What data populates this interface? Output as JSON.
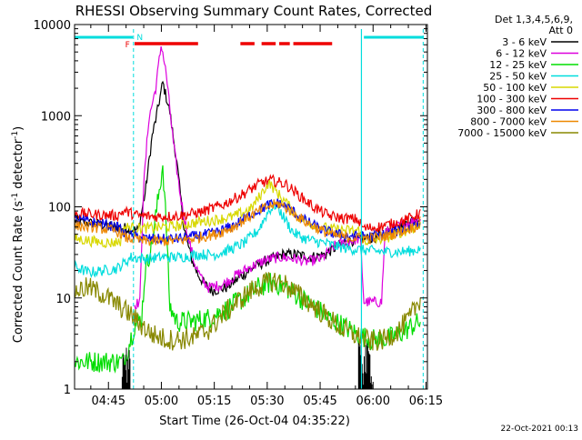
{
  "chart_data": {
    "type": "line",
    "title": "RHESSI Observing Summary Count Rates, Corrected",
    "xlabel": "Start Time (26-Oct-04 04:35:22)",
    "ylabel_main": "Corrected Count Rate (s",
    "ylabel_sup": "-1",
    "ylabel_end": " detector",
    "ylabel_sup2": "-1",
    "ylabel_close": ")",
    "yscale": "log",
    "ylim": [
      1,
      10000
    ],
    "y_ticks": [
      {
        "value": 1,
        "label": "1"
      },
      {
        "value": 10,
        "label": "10"
      },
      {
        "value": 100,
        "label": "100"
      },
      {
        "value": 1000,
        "label": "1000"
      },
      {
        "value": 10000,
        "label": "10000"
      }
    ],
    "xlim_minutes": [
      0,
      100
    ],
    "x_ticks": [
      {
        "minute": 9.6,
        "label": "04:45"
      },
      {
        "minute": 24.6,
        "label": "05:00"
      },
      {
        "minute": 39.6,
        "label": "05:15"
      },
      {
        "minute": 54.6,
        "label": "05:30"
      },
      {
        "minute": 69.6,
        "label": "05:45"
      },
      {
        "minute": 84.6,
        "label": "06:00"
      },
      {
        "minute": 99.6,
        "label": "06:15"
      }
    ],
    "legend_header": [
      "Det 1,3,4,5,6,9,",
      "Att 0"
    ],
    "legend_placement": "right",
    "series": [
      {
        "name": "3 - 6 keV",
        "color": "#000000",
        "points": [
          [
            0,
            70
          ],
          [
            15,
            58
          ],
          [
            18,
            55
          ],
          [
            20,
            140
          ],
          [
            22,
            600
          ],
          [
            23,
            900
          ],
          [
            25,
            2300
          ],
          [
            27,
            1100
          ],
          [
            29,
            300
          ],
          [
            31,
            60
          ],
          [
            33,
            28
          ],
          [
            35,
            18
          ],
          [
            37,
            14
          ],
          [
            39,
            12
          ],
          [
            43,
            13
          ],
          [
            47,
            17
          ],
          [
            51,
            22
          ],
          [
            55,
            26
          ],
          [
            59,
            30
          ],
          [
            63,
            30
          ],
          [
            67,
            28
          ],
          [
            71,
            30
          ],
          [
            75,
            38
          ],
          [
            78,
            42
          ],
          [
            81,
            45
          ],
          [
            85,
            45
          ],
          [
            88,
            52
          ],
          [
            91,
            60
          ],
          [
            95,
            68
          ],
          [
            98,
            75
          ]
        ]
      },
      {
        "name": "6 - 12 keV",
        "color": "#dd00dd",
        "points": [
          [
            17,
            8.5
          ],
          [
            18.5,
            9
          ],
          [
            19.5,
            150
          ],
          [
            21,
            900
          ],
          [
            23,
            2000
          ],
          [
            24.6,
            6200
          ],
          [
            26,
            2800
          ],
          [
            28,
            500
          ],
          [
            30,
            130
          ],
          [
            32,
            50
          ],
          [
            34,
            24
          ],
          [
            36,
            16
          ],
          [
            38,
            13
          ],
          [
            42,
            14
          ],
          [
            46,
            18
          ],
          [
            50,
            22
          ],
          [
            54,
            26
          ],
          [
            58,
            28
          ],
          [
            62,
            27
          ],
          [
            66,
            25
          ],
          [
            70,
            27
          ],
          [
            74,
            38
          ],
          [
            78,
            42
          ],
          [
            81,
            45
          ],
          [
            82,
            9
          ],
          [
            86,
            9
          ],
          [
            87,
            9
          ],
          [
            88,
            52
          ],
          [
            92,
            62
          ],
          [
            96,
            70
          ],
          [
            98,
            78
          ]
        ]
      },
      {
        "name": "12 - 25 keV",
        "color": "#00dd00",
        "points": [
          [
            0,
            2
          ],
          [
            14,
            2
          ],
          [
            17,
            5
          ],
          [
            19,
            6
          ],
          [
            20,
            20
          ],
          [
            22,
            40
          ],
          [
            24,
            150
          ],
          [
            25,
            290
          ],
          [
            26,
            60
          ],
          [
            27,
            8
          ],
          [
            29,
            5.5
          ],
          [
            33,
            5.5
          ],
          [
            38,
            6
          ],
          [
            43,
            7.5
          ],
          [
            48,
            10
          ],
          [
            52,
            13
          ],
          [
            56,
            15
          ],
          [
            60,
            13
          ],
          [
            64,
            10
          ],
          [
            68,
            8
          ],
          [
            72,
            6
          ],
          [
            76,
            5
          ],
          [
            80,
            4
          ],
          [
            84,
            3.5
          ],
          [
            88,
            3.5
          ],
          [
            92,
            4
          ],
          [
            96,
            5
          ],
          [
            98,
            5.5
          ]
        ]
      },
      {
        "name": "25 - 50 keV",
        "color": "#00dddd",
        "points": [
          [
            0,
            22
          ],
          [
            4,
            19
          ],
          [
            8,
            20
          ],
          [
            12,
            21
          ],
          [
            14,
            24
          ],
          [
            16,
            28
          ],
          [
            20,
            27
          ],
          [
            25,
            28
          ],
          [
            30,
            28
          ],
          [
            35,
            30
          ],
          [
            40,
            30
          ],
          [
            44,
            34
          ],
          [
            48,
            40
          ],
          [
            52,
            55
          ],
          [
            55,
            90
          ],
          [
            57,
            105
          ],
          [
            59,
            80
          ],
          [
            62,
            52
          ],
          [
            65,
            45
          ],
          [
            68,
            42
          ],
          [
            71,
            40
          ],
          [
            74,
            37
          ],
          [
            77,
            35
          ],
          [
            80,
            34
          ],
          [
            84,
            33
          ],
          [
            88,
            32
          ],
          [
            92,
            32
          ],
          [
            96,
            33
          ],
          [
            98,
            35
          ]
        ]
      },
      {
        "name": "50 - 100 keV",
        "color": "#d8d800",
        "points": [
          [
            0,
            45
          ],
          [
            5,
            42
          ],
          [
            10,
            40
          ],
          [
            13,
            42
          ],
          [
            14,
            60
          ],
          [
            20,
            58
          ],
          [
            25,
            60
          ],
          [
            30,
            62
          ],
          [
            35,
            68
          ],
          [
            40,
            72
          ],
          [
            45,
            78
          ],
          [
            50,
            95
          ],
          [
            53,
            140
          ],
          [
            55,
            185
          ],
          [
            57,
            150
          ],
          [
            60,
            110
          ],
          [
            63,
            80
          ],
          [
            66,
            68
          ],
          [
            70,
            60
          ],
          [
            74,
            56
          ],
          [
            78,
            55
          ],
          [
            81,
            55
          ],
          [
            82,
            42
          ],
          [
            88,
            45
          ],
          [
            92,
            52
          ],
          [
            96,
            58
          ],
          [
            98,
            62
          ]
        ]
      },
      {
        "name": "100 - 300 keV",
        "color": "#ee0000",
        "points": [
          [
            0,
            85
          ],
          [
            6,
            82
          ],
          [
            12,
            80
          ],
          [
            14,
            90
          ],
          [
            18,
            80
          ],
          [
            24,
            78
          ],
          [
            30,
            80
          ],
          [
            36,
            88
          ],
          [
            42,
            105
          ],
          [
            48,
            140
          ],
          [
            53,
            185
          ],
          [
            56,
            195
          ],
          [
            60,
            175
          ],
          [
            64,
            130
          ],
          [
            68,
            98
          ],
          [
            72,
            80
          ],
          [
            76,
            75
          ],
          [
            80,
            73
          ],
          [
            82,
            58
          ],
          [
            86,
            60
          ],
          [
            90,
            65
          ],
          [
            94,
            72
          ],
          [
            97,
            82
          ],
          [
            98,
            88
          ]
        ]
      },
      {
        "name": "300 - 800 keV",
        "color": "#0000ee",
        "points": [
          [
            0,
            72
          ],
          [
            5,
            68
          ],
          [
            10,
            62
          ],
          [
            13,
            58
          ],
          [
            14,
            50
          ],
          [
            20,
            45
          ],
          [
            25,
            44
          ],
          [
            30,
            45
          ],
          [
            35,
            48
          ],
          [
            40,
            52
          ],
          [
            45,
            62
          ],
          [
            50,
            82
          ],
          [
            55,
            105
          ],
          [
            58,
            110
          ],
          [
            61,
            95
          ],
          [
            65,
            72
          ],
          [
            70,
            56
          ],
          [
            74,
            50
          ],
          [
            78,
            48
          ],
          [
            82,
            47
          ],
          [
            86,
            48
          ],
          [
            90,
            52
          ],
          [
            94,
            58
          ],
          [
            97,
            65
          ],
          [
            98,
            70
          ]
        ]
      },
      {
        "name": "800 - 7000 keV",
        "color": "#ee8800",
        "points": [
          [
            0,
            62
          ],
          [
            5,
            60
          ],
          [
            10,
            56
          ],
          [
            13,
            52
          ],
          [
            14,
            46
          ],
          [
            20,
            42
          ],
          [
            25,
            42
          ],
          [
            30,
            43
          ],
          [
            35,
            46
          ],
          [
            40,
            50
          ],
          [
            45,
            60
          ],
          [
            50,
            80
          ],
          [
            55,
            102
          ],
          [
            58,
            108
          ],
          [
            61,
            92
          ],
          [
            65,
            70
          ],
          [
            70,
            55
          ],
          [
            74,
            48
          ],
          [
            78,
            46
          ],
          [
            82,
            45
          ],
          [
            86,
            46
          ],
          [
            90,
            50
          ],
          [
            94,
            56
          ],
          [
            97,
            62
          ],
          [
            98,
            68
          ]
        ]
      },
      {
        "name": "7000 - 15000 keV",
        "color": "#888800",
        "points": [
          [
            0,
            12
          ],
          [
            4,
            13
          ],
          [
            8,
            11
          ],
          [
            12,
            8.5
          ],
          [
            16,
            6.5
          ],
          [
            19,
            5
          ],
          [
            22,
            4
          ],
          [
            26,
            3.5
          ],
          [
            30,
            3.5
          ],
          [
            34,
            3.7
          ],
          [
            38,
            4.5
          ],
          [
            42,
            6.5
          ],
          [
            46,
            9
          ],
          [
            50,
            12
          ],
          [
            54,
            14.5
          ],
          [
            57,
            15.5
          ],
          [
            60,
            14
          ],
          [
            64,
            10.5
          ],
          [
            68,
            8
          ],
          [
            72,
            6
          ],
          [
            76,
            4.5
          ],
          [
            80,
            3.8
          ],
          [
            84,
            3.3
          ],
          [
            88,
            3.5
          ],
          [
            92,
            4.5
          ],
          [
            95,
            6
          ],
          [
            98,
            10
          ]
        ]
      }
    ],
    "flag_labels": {
      "F": "F",
      "N": "N"
    },
    "annotation_date": "22-Oct-2021 00:13"
  }
}
